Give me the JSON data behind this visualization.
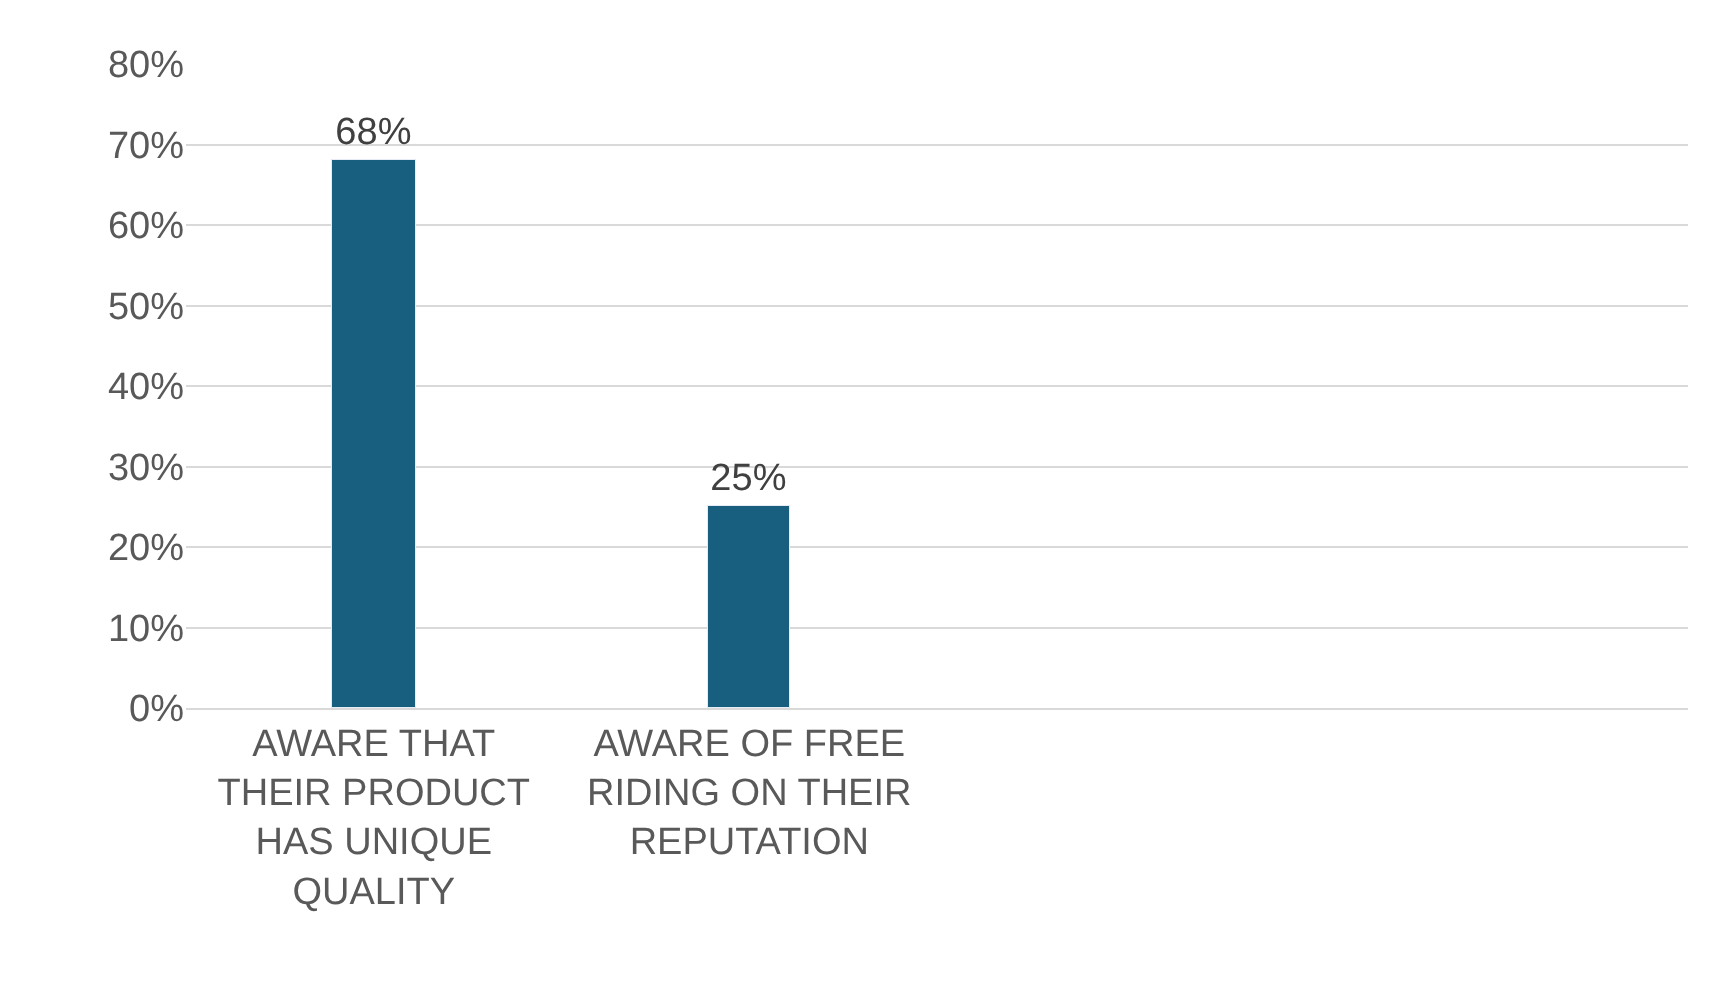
{
  "chart_data": {
    "type": "bar",
    "categories": [
      "AWARE THAT THEIR PRODUCT HAS UNIQUE QUALITY",
      "AWARE OF FREE RIDING ON THEIR REPUTATION",
      null,
      null
    ],
    "values": [
      68,
      25,
      null,
      null
    ],
    "value_labels": [
      "68%",
      "25%",
      null,
      null
    ],
    "color": "#175e7f",
    "ylim": [
      0,
      80
    ],
    "yticks": [
      {
        "value": 0,
        "label": "0%"
      },
      {
        "value": 10,
        "label": "10%"
      },
      {
        "value": 20,
        "label": "20%"
      },
      {
        "value": 30,
        "label": "30%"
      },
      {
        "value": 40,
        "label": "40%"
      },
      {
        "value": 50,
        "label": "50%"
      },
      {
        "value": 60,
        "label": "60%"
      },
      {
        "value": 70,
        "label": "70%"
      },
      {
        "value": 80,
        "label": "80%"
      }
    ],
    "grid": "y"
  }
}
